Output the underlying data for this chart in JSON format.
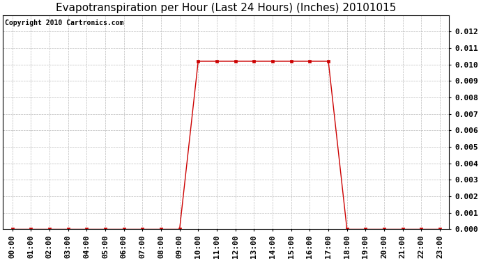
{
  "title": "Evapotranspiration per Hour (Last 24 Hours) (Inches) 20101015",
  "copyright": "Copyright 2010 Cartronics.com",
  "hours": [
    "00:00",
    "01:00",
    "02:00",
    "03:00",
    "04:00",
    "05:00",
    "06:00",
    "07:00",
    "08:00",
    "09:00",
    "10:00",
    "11:00",
    "12:00",
    "13:00",
    "14:00",
    "15:00",
    "16:00",
    "17:00",
    "18:00",
    "19:00",
    "20:00",
    "21:00",
    "22:00",
    "23:00"
  ],
  "values": [
    0.0,
    0.0,
    0.0,
    0.0,
    0.0,
    0.0,
    0.0,
    0.0,
    0.0,
    0.0,
    0.0102,
    0.0102,
    0.0102,
    0.0102,
    0.0102,
    0.0102,
    0.0102,
    0.0102,
    0.0,
    0.0,
    0.0,
    0.0,
    0.0,
    0.0
  ],
  "line_color": "#cc0000",
  "marker": "s",
  "marker_size": 3,
  "ylim": [
    0.0,
    0.013
  ],
  "yticks": [
    0.0,
    0.001,
    0.002,
    0.003,
    0.004,
    0.005,
    0.006,
    0.007,
    0.008,
    0.009,
    0.01,
    0.011,
    0.012
  ],
  "background_color": "#ffffff",
  "grid_color": "#bbbbbb",
  "title_fontsize": 11,
  "copyright_fontsize": 7,
  "tick_fontsize": 8,
  "ytick_fontsize": 8
}
